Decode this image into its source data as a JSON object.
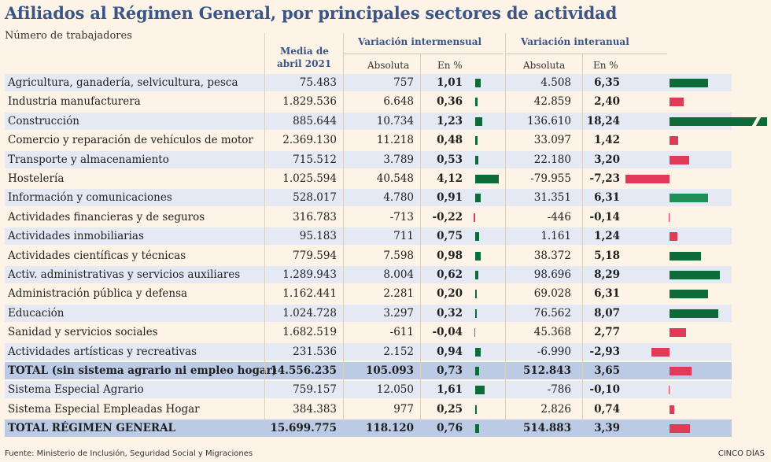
{
  "title": "Afiliados al Régimen General, por principales sectores de actividad",
  "subtitle": "Número de trabajadores",
  "headers": {
    "media_line1": "Media de",
    "media_line2": "abril 2021",
    "intermensual": "Variación intermensual",
    "interanual": "Variación interanual",
    "absoluta": "Absoluta",
    "en_pct": "En %"
  },
  "colors": {
    "dark_green": "#0d6b3a",
    "light_green": "#1e8f55",
    "red": "#e03a56",
    "title_blue": "#3a5688"
  },
  "rows": [
    {
      "name": "Agricultura, ganadería, selvicultura, pesca",
      "media": "75.483",
      "abs_m": "757",
      "pct_m": "1,01",
      "abs_a": "4.508",
      "pct_a": "6,35",
      "vm": 1.01,
      "va": 6.35
    },
    {
      "name": "Industria manufacturera",
      "media": "1.829.536",
      "abs_m": "6.648",
      "pct_m": "0,36",
      "abs_a": "42.859",
      "pct_a": "2,40",
      "vm": 0.36,
      "va": 2.4
    },
    {
      "name": "Construcción",
      "media": "885.644",
      "abs_m": "10.734",
      "pct_m": "1,23",
      "abs_a": "136.610",
      "pct_a": "18,24",
      "vm": 1.23,
      "va": 18.24
    },
    {
      "name": "Comercio y reparación de vehículos de motor",
      "media": "2.369.130",
      "abs_m": "11.218",
      "pct_m": "0,48",
      "abs_a": "33.097",
      "pct_a": "1,42",
      "vm": 0.48,
      "va": 1.42
    },
    {
      "name": "Transporte y almacenamiento",
      "media": "715.512",
      "abs_m": "3.789",
      "pct_m": "0,53",
      "abs_a": "22.180",
      "pct_a": "3,20",
      "vm": 0.53,
      "va": 3.2
    },
    {
      "name": "Hostelería",
      "media": "1.025.594",
      "abs_m": "40.548",
      "pct_m": "4,12",
      "abs_a": "-79.955",
      "pct_a": "-7,23",
      "vm": 4.12,
      "va": -7.23
    },
    {
      "name": "Información y comunicaciones",
      "media": "528.017",
      "abs_m": "4.780",
      "pct_m": "0,91",
      "abs_a": "31.351",
      "pct_a": "6,31",
      "vm": 0.91,
      "va": 6.31
    },
    {
      "name": "Actividades financieras y de seguros",
      "media": "316.783",
      "abs_m": "-713",
      "pct_m": "-0,22",
      "abs_a": "-446",
      "pct_a": "-0,14",
      "vm": -0.22,
      "va": -0.14
    },
    {
      "name": "Actividades inmobiliarias",
      "media": "95.183",
      "abs_m": "711",
      "pct_m": "0,75",
      "abs_a": "1.161",
      "pct_a": "1,24",
      "vm": 0.75,
      "va": 1.24
    },
    {
      "name": "Actividades científicas y técnicas",
      "media": "779.594",
      "abs_m": "7.598",
      "pct_m": "0,98",
      "abs_a": "38.372",
      "pct_a": "5,18",
      "vm": 0.98,
      "va": 5.18
    },
    {
      "name": "Activ. administrativas y servicios auxiliares",
      "media": "1.289.943",
      "abs_m": "8.004",
      "pct_m": "0,62",
      "abs_a": "98.696",
      "pct_a": "8,29",
      "vm": 0.62,
      "va": 8.29
    },
    {
      "name": "Administración pública y defensa",
      "media": "1.162.441",
      "abs_m": "2.281",
      "pct_m": "0,20",
      "abs_a": "69.028",
      "pct_a": "6,31",
      "vm": 0.2,
      "va": 6.31
    },
    {
      "name": "Educación",
      "media": "1.024.728",
      "abs_m": "3.297",
      "pct_m": "0,32",
      "abs_a": "76.562",
      "pct_a": "8,07",
      "vm": 0.32,
      "va": 8.07
    },
    {
      "name": "Sanidad y servicios sociales",
      "media": "1.682.519",
      "abs_m": "-611",
      "pct_m": "-0,04",
      "abs_a": "45.368",
      "pct_a": "2,77",
      "vm": -0.04,
      "va": 2.77
    },
    {
      "name": "Actividades artísticas y recreativas",
      "media": "231.536",
      "abs_m": "2.152",
      "pct_m": "0,94",
      "abs_a": "-6.990",
      "pct_a": "-2,93",
      "vm": 0.94,
      "va": -2.93
    },
    {
      "name": "TOTAL (sin sistema agrario ni empleo hogar)",
      "media": "14.556.235",
      "abs_m": "105.093",
      "pct_m": "0,73",
      "abs_a": "512.843",
      "pct_a": "3,65",
      "vm": 0.73,
      "va": 3.65,
      "total": true
    },
    {
      "name": "Sistema Especial Agrario",
      "media": "759.157",
      "abs_m": "12.050",
      "pct_m": "1,61",
      "abs_a": "-786",
      "pct_a": "-0,10",
      "vm": 1.61,
      "va": -0.1
    },
    {
      "name": "Sistema Especial Empleadas Hogar",
      "media": "384.383",
      "abs_m": "977",
      "pct_m": "0,25",
      "abs_a": "2.826",
      "pct_a": "0,74",
      "vm": 0.25,
      "va": 0.74
    },
    {
      "name": "TOTAL RÉGIMEN GENERAL",
      "media": "15.699.775",
      "abs_m": "118.120",
      "pct_m": "0,76",
      "abs_a": "514.883",
      "pct_a": "3,39",
      "vm": 0.76,
      "va": 3.39,
      "total": true
    }
  ],
  "footer": {
    "source": "Fuente: Ministerio de Inclusión, Seguridad Social y Migraciones",
    "credit": "CINCO DÍAS"
  }
}
